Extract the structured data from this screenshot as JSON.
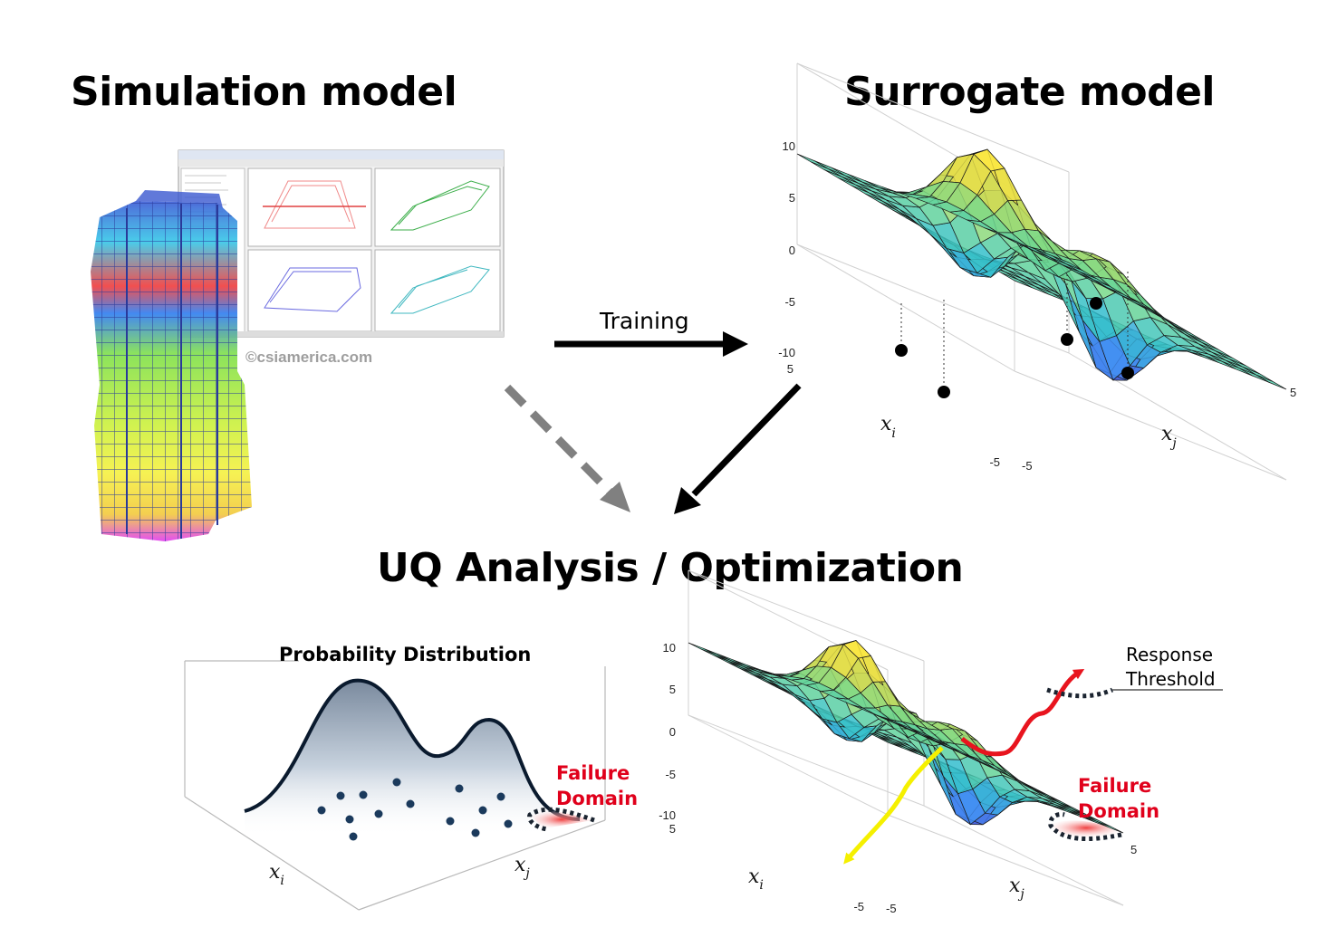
{
  "titles": {
    "simulation": "Simulation model",
    "surrogate": "Surrogate model",
    "uq": "UQ Analysis / Optimization"
  },
  "arrow_labels": {
    "training": "Training"
  },
  "watermark": "©csiamerica.com",
  "surrogate_plot": {
    "z_ticks": [
      "10",
      "5",
      "0",
      "-5",
      "-10"
    ],
    "xi_ticks": [
      "5",
      "-5"
    ],
    "xj_ticks": [
      "-5",
      "5"
    ],
    "xi_label": "x",
    "xi_sub": "i",
    "xj_label": "x",
    "xj_sub": "j"
  },
  "prob_plot": {
    "title": "Probability Distribution",
    "failure": [
      "Failure",
      "Domain"
    ],
    "xi_label": "x",
    "xi_sub": "i",
    "xj_label": "x",
    "xj_sub": "j"
  },
  "opt_plot": {
    "z_ticks": [
      "10",
      "5",
      "0",
      "-5",
      "-10"
    ],
    "xi_ticks": [
      "5",
      "-5"
    ],
    "xj_ticks": [
      "-5",
      "5"
    ],
    "response": [
      "Response",
      "Threshold"
    ],
    "failure": [
      "Failure",
      "Domain"
    ],
    "xi_label": "x",
    "xi_sub": "i",
    "xj_label": "x",
    "xj_sub": "j"
  },
  "colors": {
    "failure_text": "#e0001b",
    "arrow": "#000000",
    "dashed_arrow": "#808080",
    "path_red": "#e8141e",
    "path_yellow": "#f5f000"
  },
  "icons": {
    "software_screenshot": "hysteresis-plots-window",
    "building": "structural-building-model"
  }
}
